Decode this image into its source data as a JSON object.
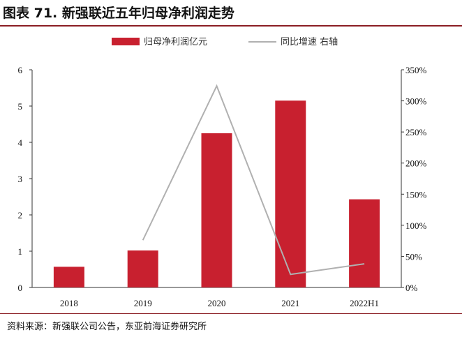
{
  "title": "图表 71. 新强联近五年归母净利润走势",
  "source": "资料来源：新强联公司公告，东亚前海证券研究所",
  "colors": {
    "bar": "#c8202f",
    "line": "#b0b0b0",
    "accent": "#8b1d23"
  },
  "chart_data": {
    "type": "bar",
    "categories": [
      "2018",
      "2019",
      "2020",
      "2021",
      "2022H1"
    ],
    "series": [
      {
        "name": "归母净利润亿元",
        "type": "bar",
        "axis": "left",
        "values": [
          0.57,
          1.02,
          4.25,
          5.15,
          2.43
        ]
      },
      {
        "name": "同比增速 右轴",
        "type": "line",
        "axis": "right",
        "values": [
          null,
          0.76,
          3.24,
          0.21,
          0.38
        ]
      }
    ],
    "ylim_left": [
      0,
      6
    ],
    "yticks_left": [
      "0",
      "1",
      "2",
      "3",
      "4",
      "5",
      "6"
    ],
    "ylim_right": [
      0,
      3.5
    ],
    "yticks_right": [
      "0%",
      "50%",
      "100%",
      "150%",
      "200%",
      "250%",
      "300%",
      "350%"
    ],
    "legend_position": "top-center",
    "grid": false
  }
}
